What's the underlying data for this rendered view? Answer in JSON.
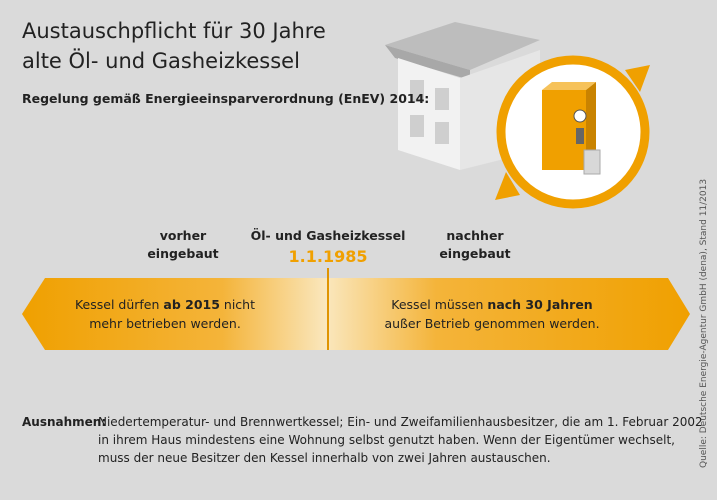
{
  "header": {
    "title_lines": [
      "Austauschpflicht für 30 Jahre",
      "alte Öl- und Gasheizkessel"
    ],
    "subtitle": "Regelung gemäß Energieeinsparverordnung (EnEV) 2014:"
  },
  "timeline": {
    "left_label": [
      "vorher",
      "eingebaut"
    ],
    "center_label": "Öl- und Gasheizkessel",
    "date": "1.1.1985",
    "right_label": [
      "nachher",
      "eingebaut"
    ]
  },
  "left_box": {
    "before": "Kessel dürfen ",
    "bold": "ab 2015",
    "after": " nicht",
    "line2": "mehr betrieben werden."
  },
  "right_box": {
    "before": "Kessel müssen ",
    "bold": "nach 30 Jahren",
    "line2": "außer Betrieb genommen werden."
  },
  "exceptions": {
    "label": "Ausnahmen:",
    "lines": [
      "Niedertemperatur- und Brennwertkessel; Ein- und  Zweifamilienhausbesitzer, die am 1. Februar 2002",
      "in ihrem Haus mindestens eine Wohnung selbst genutzt haben. Wenn der Eigentümer  wechselt,",
      "muss der neue Besitzer den Kessel innerhalb von zwei Jahren austauschen."
    ]
  },
  "source": "Quelle: Deutsche Energie-Agentur GmbH (dena), Stand 11/2013"
}
